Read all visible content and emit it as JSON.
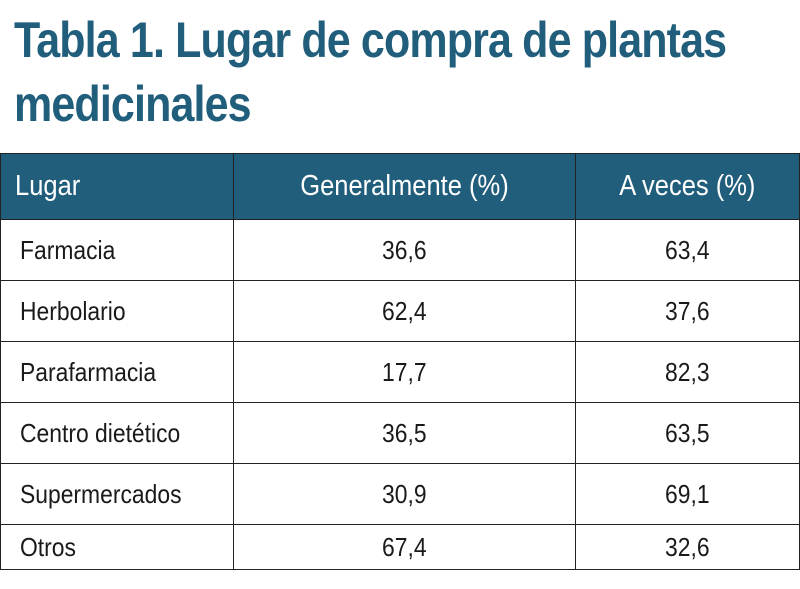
{
  "title_lines": [
    "Tabla 1. Lugar de compra de plantas",
    "medicinales"
  ],
  "colors": {
    "title": "#215e7c",
    "header_background": "#215e7c",
    "header_text": "#ffffff",
    "border": "#222222"
  },
  "chart_data": {
    "type": "table",
    "title": "Tabla 1. Lugar de compra de plantas medicinales",
    "columns": [
      "Lugar",
      "Generalmente (%)",
      "A veces (%)"
    ],
    "rows": [
      {
        "lugar": "Farmacia",
        "generalmente": "36,6",
        "a_veces": "63,4"
      },
      {
        "lugar": "Herbolario",
        "generalmente": "62,4",
        "a_veces": "37,6"
      },
      {
        "lugar": "Parafarmacia",
        "generalmente": "17,7",
        "a_veces": "82,3"
      },
      {
        "lugar": "Centro dietético",
        "generalmente": "36,5",
        "a_veces": "63,5"
      },
      {
        "lugar": "Supermercados",
        "generalmente": "30,9",
        "a_veces": "69,1"
      },
      {
        "lugar": "Otros",
        "generalmente": "67,4",
        "a_veces": "32,6"
      }
    ]
  }
}
